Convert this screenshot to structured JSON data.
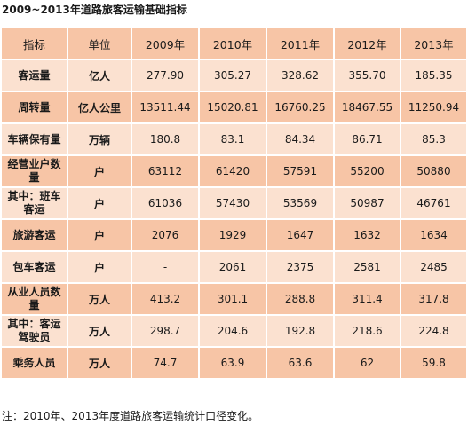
{
  "title": "2009~2013年道路旅客运输基础指标",
  "table": {
    "headers": [
      "指标",
      "单位",
      "2009年",
      "2010年",
      "2011年",
      "2012年",
      "2013年"
    ],
    "rows": [
      {
        "indicator": "客运量",
        "unit": "亿人",
        "values": [
          "277.90",
          "305.27",
          "328.62",
          "355.70",
          "185.35"
        ]
      },
      {
        "indicator": "周转量",
        "unit": "亿人公里",
        "values": [
          "13511.44",
          "15020.81",
          "16760.25",
          "18467.55",
          "11250.94"
        ]
      },
      {
        "indicator": "车辆保有量",
        "unit": "万辆",
        "values": [
          "180.8",
          "83.1",
          "84.34",
          "86.71",
          "85.3"
        ]
      },
      {
        "indicator": "经营业户数量",
        "unit": "户",
        "values": [
          "63112",
          "61420",
          "57591",
          "55200",
          "50880"
        ]
      },
      {
        "indicator": "其中：班车客运",
        "unit": "户",
        "values": [
          "61036",
          "57430",
          "53569",
          "50987",
          "46761"
        ]
      },
      {
        "indicator": "旅游客运",
        "unit": "户",
        "values": [
          "2076",
          "1929",
          "1647",
          "1632",
          "1634"
        ]
      },
      {
        "indicator": "包车客运",
        "unit": "户",
        "values": [
          "-",
          "2061",
          "2375",
          "2581",
          "2485"
        ]
      },
      {
        "indicator": "从业人员数量",
        "unit": "万人",
        "values": [
          "413.2",
          "301.1",
          "288.8",
          "311.4",
          "317.8"
        ]
      },
      {
        "indicator": "其中：客运驾驶员",
        "unit": "万人",
        "values": [
          "298.7",
          "204.6",
          "192.8",
          "218.6",
          "224.8"
        ]
      },
      {
        "indicator": "乘务人员",
        "unit": "万人",
        "values": [
          "74.7",
          "63.9",
          "63.6",
          "62",
          "59.8"
        ]
      }
    ]
  },
  "footnote": "注：2010年、2013年度道路旅客运输统计口径变化。",
  "colors": {
    "header_bg": "#f7c5a6",
    "row_light": "#fbe1d0",
    "row_dark": "#f7c5a6"
  }
}
